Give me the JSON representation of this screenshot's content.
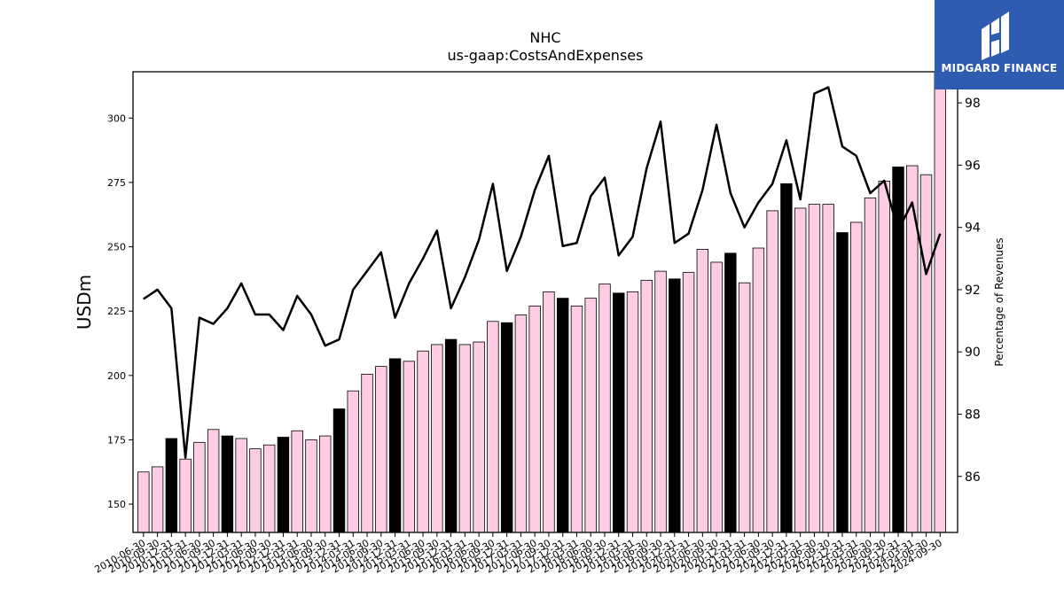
{
  "brand": {
    "name": "MIDGARD FINANCE",
    "bg_color": "#2f5bb1"
  },
  "chart_data": {
    "type": "bar",
    "title": "NHC",
    "subtitle": "us-gaap:CostsAndExpenses",
    "ylabel": "USDm",
    "y2label": "Percentage of Revenues",
    "ylim": [
      139,
      318
    ],
    "y2lim": [
      84.2,
      99.0
    ],
    "yticks": [
      150,
      175,
      200,
      225,
      250,
      275,
      300
    ],
    "y2ticks": [
      86,
      88,
      90,
      92,
      94,
      96,
      98
    ],
    "categories": [
      "2010-06-30",
      "2010-09-30",
      "2010-12-31",
      "2011-03-31",
      "2011-06-30",
      "2011-09-30",
      "2011-12-31",
      "2012-03-31",
      "2012-06-30",
      "2012-09-30",
      "2012-12-31",
      "2013-03-31",
      "2013-06-30",
      "2013-09-30",
      "2013-12-31",
      "2014-03-31",
      "2014-06-30",
      "2014-09-30",
      "2014-12-31",
      "2015-03-31",
      "2015-06-30",
      "2015-09-30",
      "2015-12-31",
      "2016-03-31",
      "2016-06-30",
      "2016-09-30",
      "2016-12-31",
      "2017-03-31",
      "2017-06-30",
      "2017-09-30",
      "2017-12-31",
      "2018-03-31",
      "2018-06-30",
      "2018-09-30",
      "2018-12-31",
      "2019-03-31",
      "2019-06-30",
      "2019-09-30",
      "2019-12-31",
      "2020-03-31",
      "2020-06-30",
      "2020-09-30",
      "2020-12-31",
      "2021-03-31",
      "2021-06-30",
      "2021-09-30",
      "2021-12-31",
      "2022-03-31",
      "2022-06-30",
      "2022-09-30",
      "2022-12-31",
      "2023-03-31",
      "2023-06-30",
      "2023-09-30",
      "2023-12-31",
      "2024-03-31",
      "2024-06-30",
      "2024-09-30"
    ],
    "series": [
      {
        "kind": "bar",
        "values": [
          162.5,
          164.5,
          175.5,
          167.5,
          174,
          179,
          176.5,
          175.5,
          171.5,
          173,
          176,
          178.5,
          175,
          176.5,
          187,
          194,
          200.5,
          203.5,
          206.5,
          205.5,
          209.5,
          212,
          214,
          212,
          213,
          221,
          220.5,
          223.5,
          227,
          232.5,
          230,
          227,
          230,
          235.5,
          232,
          232.5,
          237,
          240.5,
          237.5,
          240,
          249,
          244,
          247.5,
          236,
          249.5,
          264,
          274.5,
          265,
          266.5,
          266.5,
          255.5,
          259.5,
          269,
          275.5,
          281,
          281.5,
          278,
          321
        ],
        "colors": [
          "#ffcce6",
          "#ffcce6",
          "#000000",
          "#ffcce6",
          "#ffcce6",
          "#ffcce6",
          "#000000",
          "#ffcce6",
          "#ffcce6",
          "#ffcce6",
          "#000000",
          "#ffcce6",
          "#ffcce6",
          "#ffcce6",
          "#000000",
          "#ffcce6",
          "#ffcce6",
          "#ffcce6",
          "#000000",
          "#ffcce6",
          "#ffcce6",
          "#ffcce6",
          "#000000",
          "#ffcce6",
          "#ffcce6",
          "#ffcce6",
          "#000000",
          "#ffcce6",
          "#ffcce6",
          "#ffcce6",
          "#000000",
          "#ffcce6",
          "#ffcce6",
          "#ffcce6",
          "#000000",
          "#ffcce6",
          "#ffcce6",
          "#ffcce6",
          "#000000",
          "#ffcce6",
          "#ffcce6",
          "#ffcce6",
          "#000000",
          "#ffcce6",
          "#ffcce6",
          "#ffcce6",
          "#000000",
          "#ffcce6",
          "#ffcce6",
          "#ffcce6",
          "#000000",
          "#ffcce6",
          "#ffcce6",
          "#ffcce6",
          "#000000",
          "#ffcce6",
          "#ffcce6",
          "#ffcce6"
        ]
      },
      {
        "kind": "line",
        "axis": "right",
        "color": "#000000",
        "values": [
          91.7,
          92.0,
          91.4,
          86.6,
          91.1,
          90.9,
          91.4,
          92.2,
          91.2,
          91.2,
          90.7,
          91.8,
          91.2,
          90.2,
          90.4,
          92.0,
          92.6,
          93.2,
          91.1,
          92.2,
          93.0,
          93.9,
          91.4,
          92.4,
          93.6,
          95.4,
          92.6,
          93.7,
          95.2,
          96.3,
          93.4,
          93.5,
          95.0,
          95.6,
          93.1,
          93.7,
          95.9,
          97.4,
          93.5,
          93.8,
          95.2,
          97.3,
          95.1,
          94.0,
          94.8,
          95.4,
          96.8,
          94.9,
          98.3,
          98.5,
          96.6,
          96.3,
          95.1,
          95.5,
          93.9,
          94.8,
          92.5,
          93.8
        ]
      }
    ],
    "grid": false,
    "legend": "none"
  }
}
